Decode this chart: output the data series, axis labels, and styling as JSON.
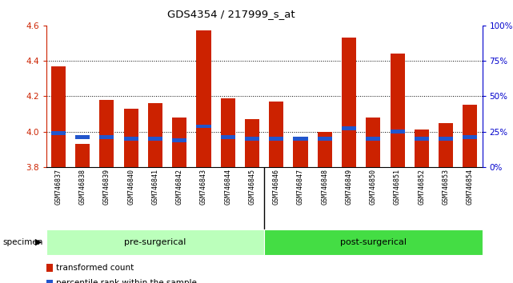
{
  "title": "GDS4354 / 217999_s_at",
  "samples": [
    "GSM746837",
    "GSM746838",
    "GSM746839",
    "GSM746840",
    "GSM746841",
    "GSM746842",
    "GSM746843",
    "GSM746844",
    "GSM746845",
    "GSM746846",
    "GSM746847",
    "GSM746848",
    "GSM746849",
    "GSM746850",
    "GSM746851",
    "GSM746852",
    "GSM746853",
    "GSM746854"
  ],
  "red_values": [
    4.37,
    3.93,
    4.18,
    4.13,
    4.16,
    4.08,
    4.57,
    4.19,
    4.07,
    4.17,
    3.97,
    4.0,
    4.53,
    4.08,
    4.44,
    4.01,
    4.05,
    4.15
  ],
  "blue_values": [
    3.99,
    3.97,
    3.97,
    3.96,
    3.96,
    3.95,
    4.03,
    3.97,
    3.96,
    3.96,
    3.96,
    3.96,
    4.02,
    3.96,
    4.0,
    3.96,
    3.96,
    3.97
  ],
  "ymin": 3.8,
  "ymax": 4.6,
  "yticks": [
    3.8,
    4.0,
    4.2,
    4.4,
    4.6
  ],
  "right_yticks": [
    0,
    25,
    50,
    75,
    100
  ],
  "right_ytick_labels": [
    "0%",
    "25%",
    "50%",
    "75%",
    "100%"
  ],
  "bar_color": "#cc2200",
  "blue_color": "#2255cc",
  "bar_width": 0.6,
  "pre_surgical_count": 9,
  "post_surgical_count": 9,
  "group_label_pre": "pre-surgerical",
  "group_label_post": "post-surgerical",
  "legend_red_label": "transformed count",
  "legend_blue_label": "percentile rank within the sample",
  "specimen_label": "specimen",
  "axis_label_color_left": "#cc2200",
  "axis_label_color_right": "#0000cc",
  "bg_color": "#ffffff",
  "tick_area_bg": "#c8c8c8",
  "pre_surgical_bg": "#bbffbb",
  "post_surgical_bg": "#44dd44"
}
